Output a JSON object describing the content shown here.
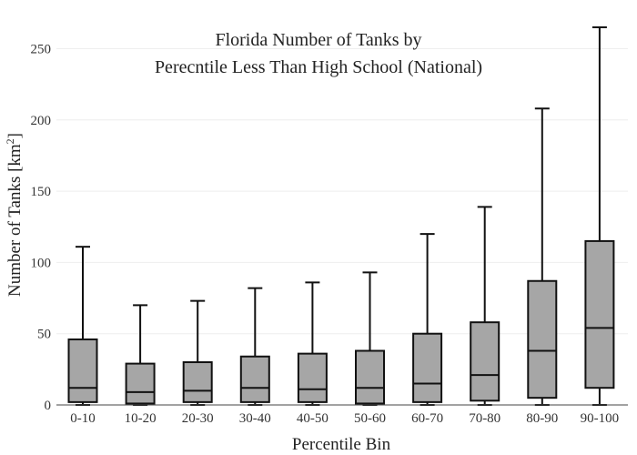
{
  "chart_data": {
    "type": "box",
    "title_lines": [
      "Florida Number of Tanks by",
      "Perecntile Less Than High School (National)"
    ],
    "xlabel": "Percentile Bin",
    "ylabel_main": "Number of Tanks  [km",
    "ylabel_sup": "2",
    "ylabel_end": "]",
    "ylim": [
      0,
      265
    ],
    "yticks": [
      0,
      50,
      100,
      150,
      200,
      250
    ],
    "grid": true,
    "categories": [
      "0-10",
      "10-20",
      "20-30",
      "30-40",
      "40-50",
      "50-60",
      "60-70",
      "70-80",
      "80-90",
      "90-100"
    ],
    "boxes": [
      {
        "min": 0,
        "q1": 2,
        "median": 12,
        "q3": 46,
        "max": 111
      },
      {
        "min": 0,
        "q1": 1,
        "median": 9,
        "q3": 29,
        "max": 70
      },
      {
        "min": 0,
        "q1": 2,
        "median": 10,
        "q3": 30,
        "max": 73
      },
      {
        "min": 0,
        "q1": 2,
        "median": 12,
        "q3": 34,
        "max": 82
      },
      {
        "min": 0,
        "q1": 2,
        "median": 11,
        "q3": 36,
        "max": 86
      },
      {
        "min": 0,
        "q1": 1,
        "median": 12,
        "q3": 38,
        "max": 93
      },
      {
        "min": 0,
        "q1": 2,
        "median": 15,
        "q3": 50,
        "max": 120
      },
      {
        "min": 0,
        "q1": 3,
        "median": 21,
        "q3": 58,
        "max": 139
      },
      {
        "min": 0,
        "q1": 5,
        "median": 38,
        "q3": 87,
        "max": 208
      },
      {
        "min": 0,
        "q1": 12,
        "median": 54,
        "q3": 115,
        "max": 265
      }
    ],
    "colors": {
      "box_fill": "#a6a6a6",
      "line": "#111111",
      "grid": "#eeeeee"
    }
  }
}
